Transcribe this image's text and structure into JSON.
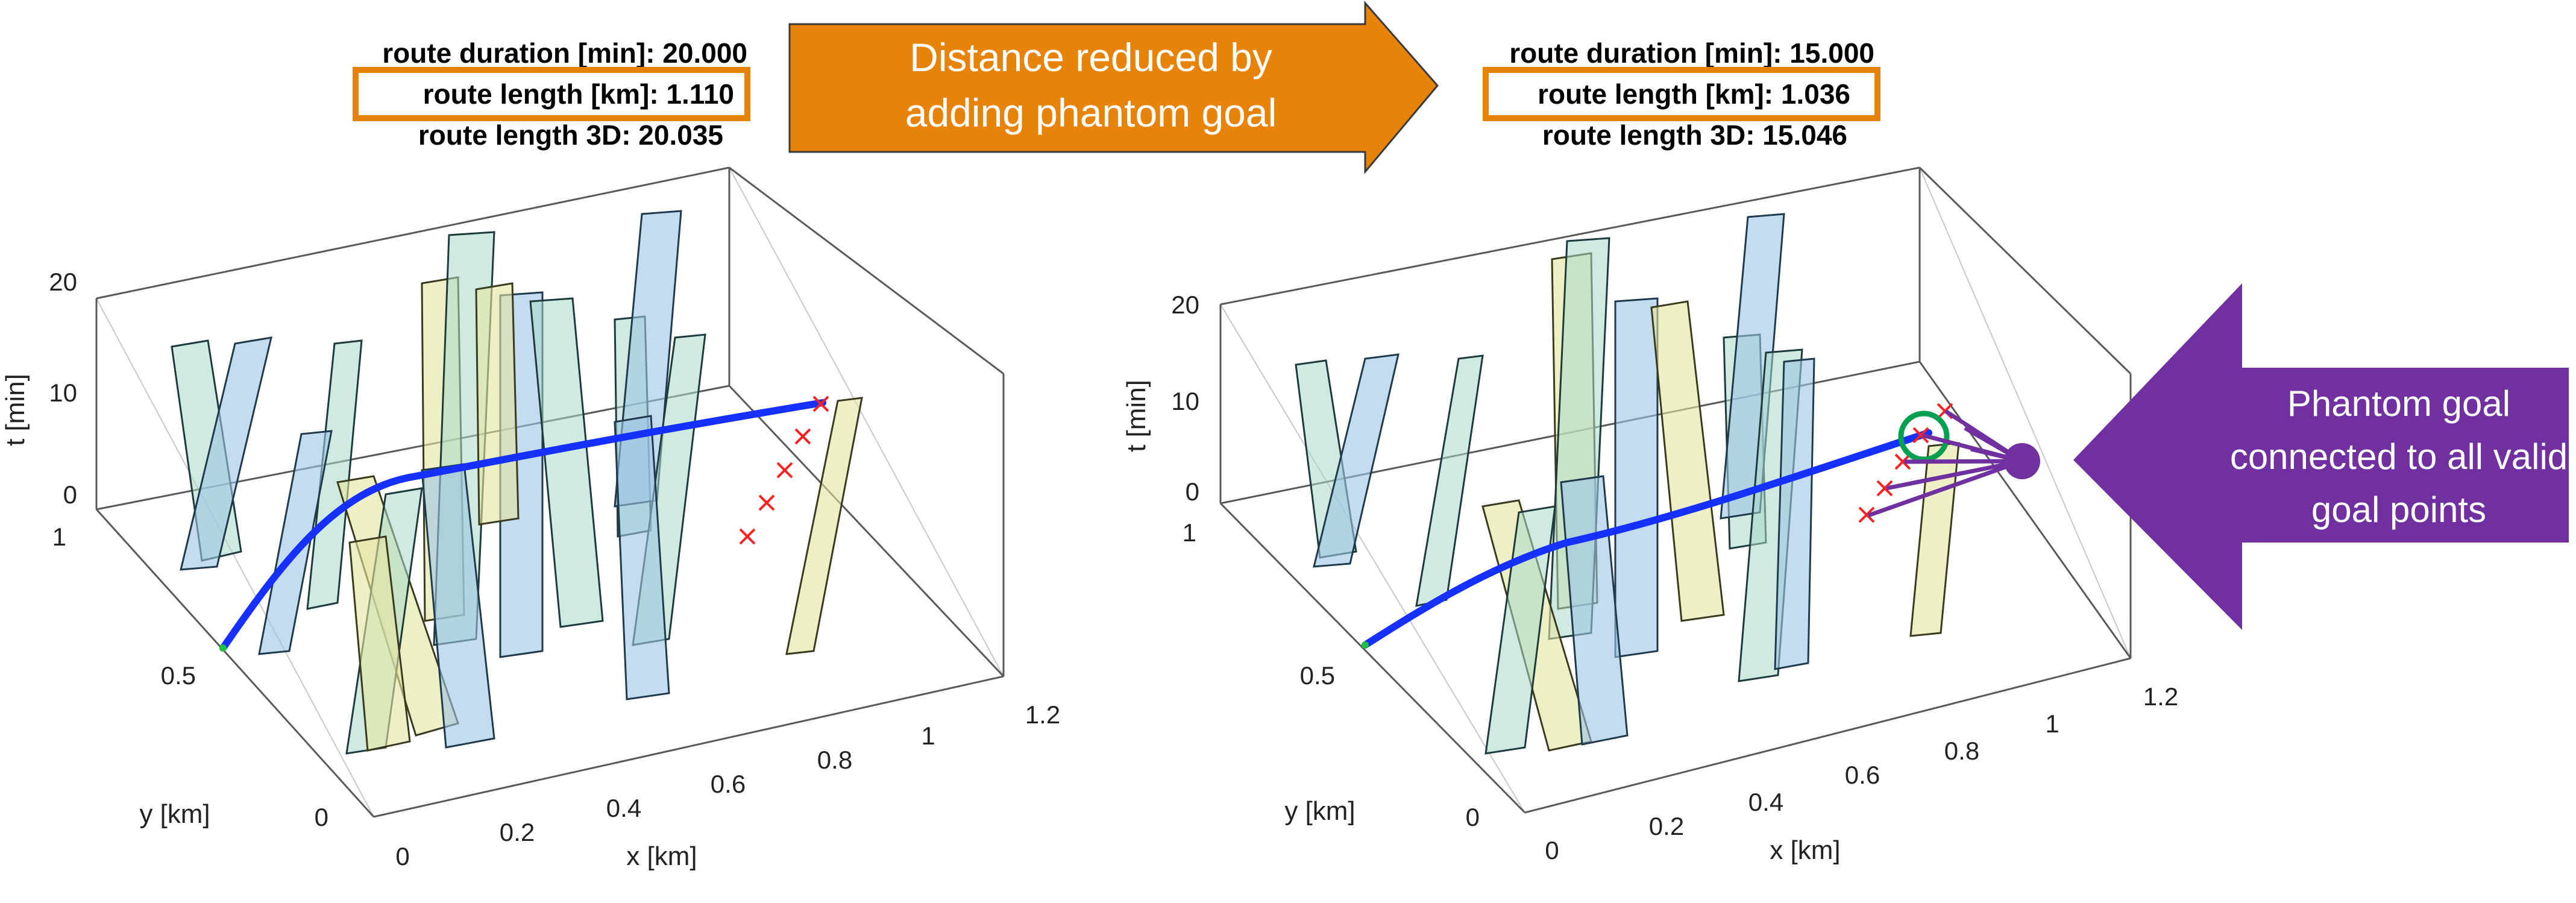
{
  "left_plot": {
    "duration_label": "route duration [min]: 20.000",
    "length_label": "route length [km]: 1.110",
    "length3d_label": "route length 3D: 20.035",
    "t_label": "t [min]",
    "y_label": "y [km]",
    "x_label": "x [km]",
    "t_ticks": [
      "20",
      "10",
      "0"
    ],
    "y_ticks": [
      "1",
      "0.5",
      "0"
    ],
    "x_ticks": [
      "0",
      "0.2",
      "0.4",
      "0.6",
      "0.8",
      "1",
      "1.2"
    ]
  },
  "right_plot": {
    "duration_label": "route duration [min]: 15.000",
    "length_label": "route length [km]: 1.036",
    "length3d_label": "route length 3D: 15.046",
    "t_label": "t [min]",
    "y_label": "y [km]",
    "x_label": "x [km]",
    "t_ticks": [
      "20",
      "10",
      "0"
    ],
    "y_ticks": [
      "1",
      "0.5",
      "0"
    ],
    "x_ticks": [
      "0",
      "0.2",
      "0.4",
      "0.6",
      "0.8",
      "1",
      "1.2"
    ]
  },
  "arrow_callout": {
    "line1": "Distance reduced by",
    "line2": "adding phantom goal",
    "color": "#e8830a"
  },
  "phantom_callout": {
    "line1": "Phantom goal",
    "line2": "connected to all valid",
    "line3": "goal points",
    "color": "#7030a0"
  },
  "colors": {
    "highlight_box": "#e8830a",
    "route": "#1530ff",
    "goal_marker": "#ff2020",
    "goal_circle": "#00a050",
    "phantom": "#7030a0"
  }
}
